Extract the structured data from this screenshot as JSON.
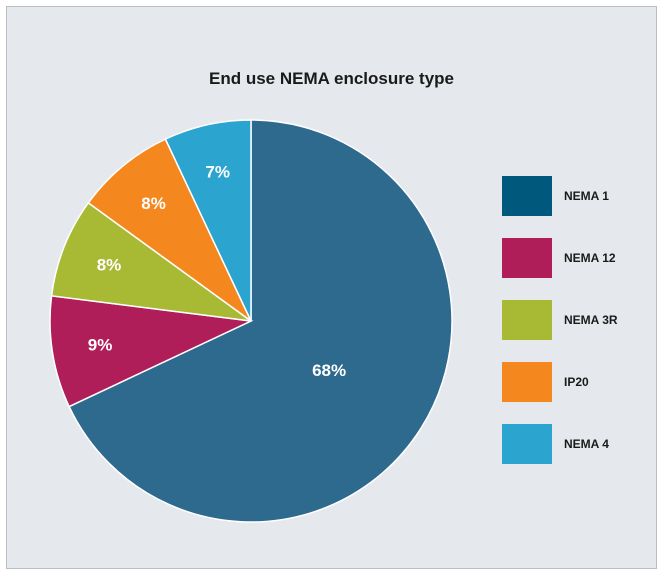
{
  "chart_data": {
    "type": "pie",
    "title": "End use NEMA enclosure type",
    "slices": [
      {
        "label": "NEMA 1",
        "value": 68,
        "value_label": "68%",
        "color": "#2e6a8e"
      },
      {
        "label": "NEMA 12",
        "value": 9,
        "value_label": "9%",
        "color": "#b01e59"
      },
      {
        "label": "NEMA 3R",
        "value": 8,
        "value_label": "8%",
        "color": "#a8b934"
      },
      {
        "label": "IP20",
        "value": 8,
        "value_label": "8%",
        "color": "#f5871f"
      },
      {
        "label": "NEMA 4",
        "value": 7,
        "value_label": "7%",
        "color": "#2ba4d0"
      }
    ],
    "legend": {
      "placement": "right",
      "entries": [
        {
          "label": "NEMA 1",
          "color": "#00587c"
        },
        {
          "label": "NEMA 12",
          "color": "#b01e59"
        },
        {
          "label": "NEMA 3R",
          "color": "#a8b934"
        },
        {
          "label": "IP20",
          "color": "#f5871f"
        },
        {
          "label": "NEMA 4",
          "color": "#2ba4d0"
        }
      ]
    }
  }
}
